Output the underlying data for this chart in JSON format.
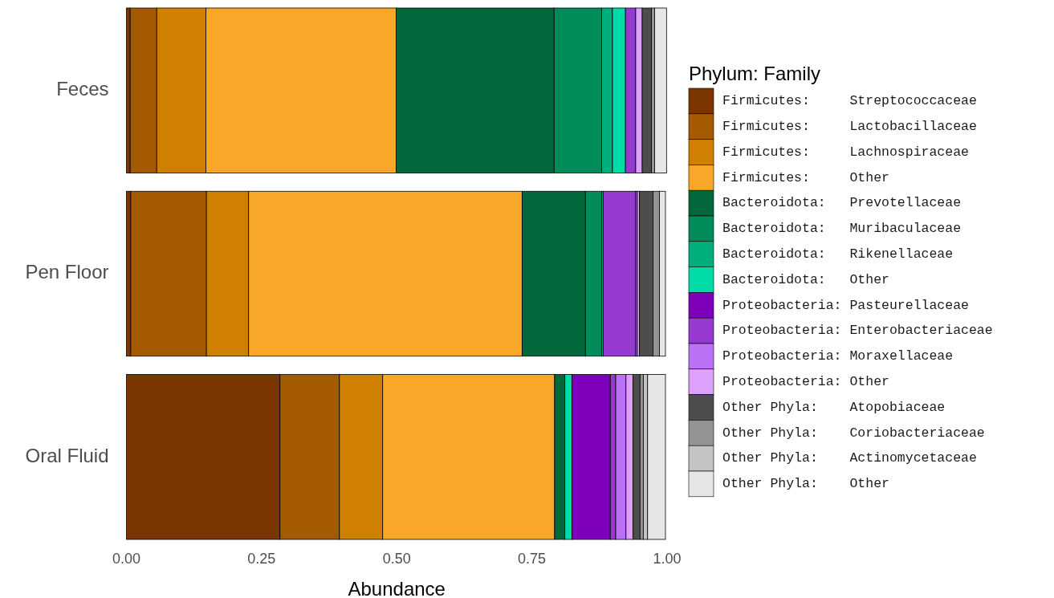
{
  "chart_data": {
    "type": "bar",
    "orientation": "horizontal",
    "stacked": true,
    "categories": [
      "Feces",
      "Pen Floor",
      "Oral Fluid"
    ],
    "xlabel": "Abundance",
    "legend_title": "Phylum: Family",
    "legend": "right",
    "grid": false,
    "xlim": [
      0,
      1
    ],
    "xticks": [
      {
        "value": 0,
        "label": "0.00"
      },
      {
        "value": 0.25,
        "label": "0.25"
      },
      {
        "value": 0.5,
        "label": "0.50"
      },
      {
        "value": 0.75,
        "label": "0.75"
      },
      {
        "value": 1,
        "label": "1.00"
      }
    ],
    "series": [
      {
        "name": "Firmicutes:     Streptococcaceae",
        "color": "#7a3500",
        "values": [
          0.007,
          0.008,
          0.284
        ]
      },
      {
        "name": "Firmicutes:     Lactobacillaceae",
        "color": "#a35a00",
        "values": [
          0.049,
          0.14,
          0.11
        ]
      },
      {
        "name": "Firmicutes:     Lachnospiraceae",
        "color": "#d08000",
        "values": [
          0.091,
          0.078,
          0.08
        ]
      },
      {
        "name": "Firmicutes:     Other",
        "color": "#f9a729",
        "values": [
          0.352,
          0.506,
          0.318
        ]
      },
      {
        "name": "Bacteroidota:   Prevotellaceae",
        "color": "#02673a",
        "values": [
          0.292,
          0.117,
          0.019
        ]
      },
      {
        "name": "Bacteroidota:   Muribaculaceae",
        "color": "#008b58",
        "values": [
          0.088,
          0.03,
          0
        ]
      },
      {
        "name": "Bacteroidota:   Rikenellaceae",
        "color": "#00b07c",
        "values": [
          0.02,
          0.003,
          0
        ]
      },
      {
        "name": "Bacteroidota:   Other",
        "color": "#00dca7",
        "values": [
          0.024,
          0,
          0.013
        ]
      },
      {
        "name": "Proteobacteria: Pasteurellaceae",
        "color": "#7e00ba",
        "values": [
          0,
          0,
          0.071
        ]
      },
      {
        "name": "Proteobacteria: Enterobacteriaceae",
        "color": "#963ad1",
        "values": [
          0.019,
          0.06,
          0.01
        ]
      },
      {
        "name": "Proteobacteria: Moraxellaceae",
        "color": "#bb71f5",
        "values": [
          0,
          0.003,
          0.019
        ]
      },
      {
        "name": "Proteobacteria: Other",
        "color": "#dea0fd",
        "values": [
          0.012,
          0.004,
          0.013
        ]
      },
      {
        "name": "Other Phyla:    Atopobiaceae",
        "color": "#4d4d4d",
        "values": [
          0.017,
          0.025,
          0.013
        ]
      },
      {
        "name": "Other Phyla:    Coriobacteriaceae",
        "color": "#949494",
        "values": [
          0.006,
          0.012,
          0.006
        ]
      },
      {
        "name": "Other Phyla:    Actinomycetaceae",
        "color": "#c4c4c4",
        "values": [
          0,
          0,
          0.008
        ]
      },
      {
        "name": "Other Phyla:    Other",
        "color": "#e6e6e6",
        "values": [
          0.022,
          0.011,
          0.033
        ]
      }
    ]
  }
}
